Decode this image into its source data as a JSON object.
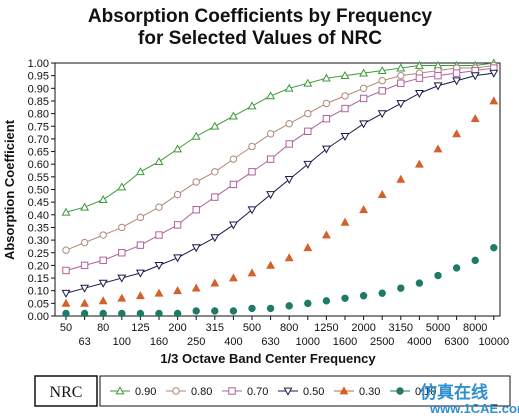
{
  "chart_data": {
    "type": "line",
    "title": "Absorption Coefficients by Frequency",
    "subtitle": "for Selected Values of NRC",
    "xlabel": "1/3 Octave Band Center Frequency",
    "ylabel": "Absorption Coefficient",
    "x": [
      "50",
      "63",
      "80",
      "100",
      "125",
      "160",
      "200",
      "250",
      "315",
      "400",
      "500",
      "630",
      "800",
      "1000",
      "1250",
      "1600",
      "2000",
      "2500",
      "3150",
      "4000",
      "5000",
      "6300",
      "8000",
      "10000"
    ],
    "ylim": [
      0,
      1.0
    ],
    "yticks": [
      "0.00",
      "0.05",
      "0.10",
      "0.15",
      "0.20",
      "0.25",
      "0.30",
      "0.35",
      "0.40",
      "0.45",
      "0.50",
      "0.55",
      "0.60",
      "0.65",
      "0.70",
      "0.75",
      "0.80",
      "0.85",
      "0.90",
      "0.95",
      "1.00"
    ],
    "grid": false,
    "legend_title": "NRC",
    "legend_position": "bottom",
    "series": [
      {
        "name": "0.90",
        "color": "#3a9a3a",
        "marker": "triangle-up-open",
        "values": [
          0.41,
          0.43,
          0.46,
          0.51,
          0.57,
          0.61,
          0.66,
          0.71,
          0.75,
          0.79,
          0.83,
          0.87,
          0.9,
          0.92,
          0.94,
          0.95,
          0.96,
          0.97,
          0.98,
          0.99,
          0.99,
          0.99,
          0.99,
          1.0
        ]
      },
      {
        "name": "0.80",
        "color": "#b08878",
        "marker": "circle-open",
        "values": [
          0.26,
          0.29,
          0.32,
          0.35,
          0.39,
          0.43,
          0.48,
          0.53,
          0.57,
          0.62,
          0.67,
          0.72,
          0.76,
          0.8,
          0.84,
          0.87,
          0.9,
          0.93,
          0.95,
          0.96,
          0.97,
          0.98,
          0.98,
          0.99
        ]
      },
      {
        "name": "0.70",
        "color": "#b0609c",
        "marker": "square-open",
        "values": [
          0.18,
          0.2,
          0.22,
          0.25,
          0.28,
          0.32,
          0.36,
          0.42,
          0.47,
          0.52,
          0.57,
          0.62,
          0.68,
          0.73,
          0.78,
          0.82,
          0.86,
          0.89,
          0.92,
          0.94,
          0.95,
          0.96,
          0.97,
          0.98
        ]
      },
      {
        "name": "0.50",
        "color": "#1a1a4a",
        "marker": "triangle-down-open",
        "values": [
          0.09,
          0.11,
          0.13,
          0.15,
          0.17,
          0.2,
          0.23,
          0.27,
          0.31,
          0.36,
          0.42,
          0.48,
          0.54,
          0.6,
          0.66,
          0.71,
          0.76,
          0.8,
          0.84,
          0.88,
          0.91,
          0.93,
          0.95,
          0.96
        ]
      },
      {
        "name": "0.30",
        "color": "#d4602a",
        "marker": "triangle-up-filled",
        "values": [
          0.05,
          0.05,
          0.06,
          0.07,
          0.08,
          0.09,
          0.1,
          0.11,
          0.13,
          0.15,
          0.17,
          0.2,
          0.23,
          0.27,
          0.32,
          0.37,
          0.42,
          0.48,
          0.54,
          0.6,
          0.66,
          0.72,
          0.78,
          0.85
        ]
      },
      {
        "name": "0.10",
        "color": "#1f7a66",
        "marker": "circle-filled",
        "values": [
          0.01,
          0.01,
          0.01,
          0.01,
          0.01,
          0.01,
          0.01,
          0.02,
          0.02,
          0.02,
          0.03,
          0.03,
          0.04,
          0.05,
          0.06,
          0.07,
          0.08,
          0.09,
          0.11,
          0.13,
          0.16,
          0.19,
          0.22,
          0.27
        ]
      }
    ]
  },
  "watermark": {
    "text_cn": "仿真在线",
    "url": "www.1CAE.com"
  }
}
